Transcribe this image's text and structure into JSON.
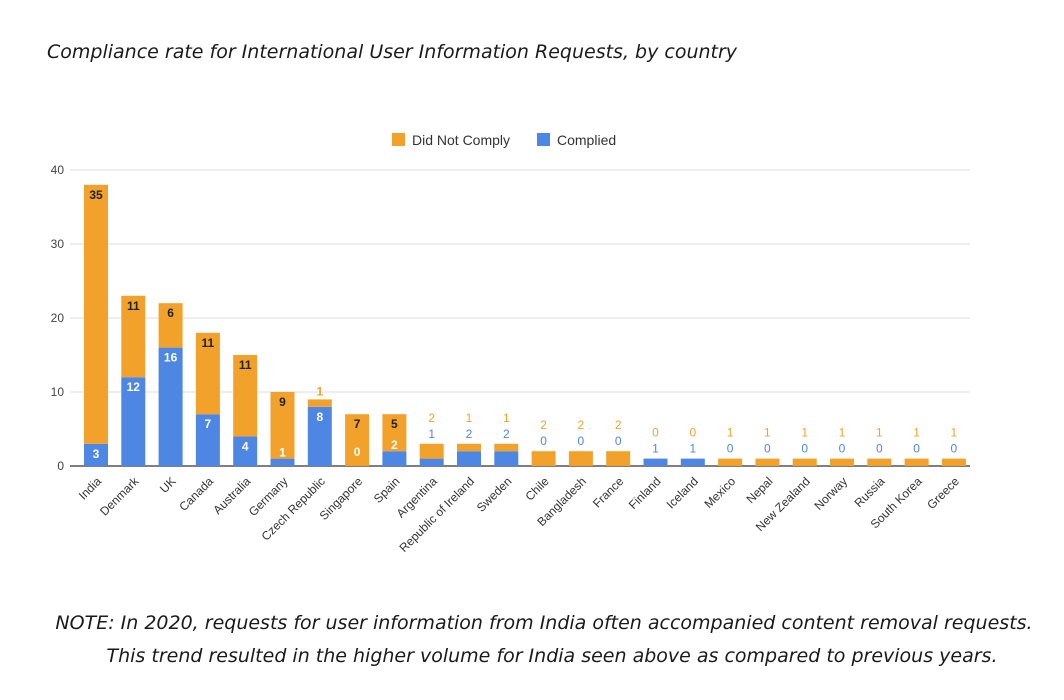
{
  "page_title": "Compliance rate for International User Information Requests, by country",
  "note": {
    "line1": "NOTE: In 2020, requests for user information from India often accompanied content removal requests.",
    "line2": "This trend resulted in the higher volume for India seen above as compared to previous years."
  },
  "colors": {
    "did_not_comply": "#f2a22b",
    "complied": "#4e86e4",
    "grid": "#dddddd",
    "axis": "#333333"
  },
  "chart_data": {
    "type": "bar",
    "stacked": true,
    "title": "Compliance rate for International User Information Requests, by country",
    "xlabel": "",
    "ylabel": "",
    "ylim": [
      0,
      40
    ],
    "yticks": [
      "0",
      "10",
      "20",
      "30",
      "40"
    ],
    "legend_position": "top",
    "categories": [
      "India",
      "Denmark",
      "UK",
      "Canada",
      "Australia",
      "Germany",
      "Czech Republic",
      "Singapore",
      "Spain",
      "Argentina",
      "Republic of Ireland",
      "Sweden",
      "Chile",
      "Bangladesh",
      "France",
      "Finland",
      "Iceland",
      "Mexico",
      "Nepal",
      "New Zealand",
      "Norway",
      "Russia",
      "South Korea",
      "Greece"
    ],
    "series": [
      {
        "name": "Complied",
        "values": [
          3,
          12,
          16,
          7,
          4,
          1,
          8,
          0,
          2,
          1,
          2,
          2,
          0,
          0,
          0,
          1,
          1,
          0,
          0,
          0,
          0,
          0,
          0,
          0
        ]
      },
      {
        "name": "Did Not Comply",
        "values": [
          35,
          11,
          6,
          11,
          11,
          9,
          1,
          7,
          5,
          2,
          1,
          1,
          2,
          2,
          2,
          0,
          0,
          1,
          1,
          1,
          1,
          1,
          1,
          1
        ]
      }
    ],
    "legend": [
      "Did Not Comply",
      "Complied"
    ]
  }
}
